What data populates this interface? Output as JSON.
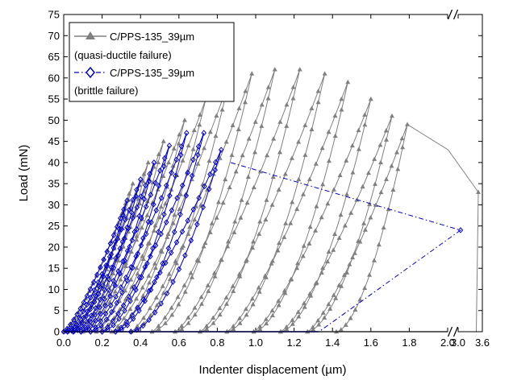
{
  "chart_data": {
    "type": "line",
    "xlabel": "Indenter displacement (µm)",
    "ylabel": "Load (mN)",
    "ylim": [
      0,
      75
    ],
    "x_ticks": [
      0.0,
      0.2,
      0.4,
      0.6,
      0.8,
      1.0,
      1.2,
      1.4,
      1.6,
      1.8,
      2.0,
      3.0,
      3.6
    ],
    "x_tick_labels": [
      "0.0",
      "0.2",
      "0.4",
      "0.6",
      "0.8",
      "1.0",
      "1.2",
      "1.4",
      "1.6",
      "1.8",
      "2.0",
      "3.0",
      "3.6"
    ],
    "y_ticks": [
      0,
      5,
      10,
      15,
      20,
      25,
      30,
      35,
      40,
      45,
      50,
      55,
      60,
      65,
      70,
      75
    ],
    "y_tick_labels": [
      "0",
      "5",
      "10",
      "15",
      "20",
      "25",
      "30",
      "35",
      "40",
      "45",
      "50",
      "55",
      "60",
      "65",
      "70",
      "75"
    ],
    "axis_break": {
      "from": 2.0,
      "to": 3.0,
      "marks": "//"
    },
    "grid": false,
    "legend": {
      "placement": "top-left",
      "entries": [
        {
          "label": "C/PPS-135_39µm",
          "sublabel": "(quasi-ductile failure)",
          "marker": "triangle",
          "color": "#808080"
        },
        {
          "label": "C/PPS-135_39µm",
          "sublabel": "(brittle failure)",
          "marker": "diamond",
          "color": "#0000cc"
        }
      ]
    },
    "series": [
      {
        "name": "C/PPS-135_39µm (quasi-ductile failure)",
        "color": "#808080",
        "marker": "triangle",
        "cycles": [
          {
            "start": 0.0,
            "peak_x": 0.36,
            "peak_y": 35,
            "end": 0.02
          },
          {
            "start": 0.02,
            "peak_x": 0.44,
            "peak_y": 40,
            "end": 0.05
          },
          {
            "start": 0.05,
            "peak_x": 0.52,
            "peak_y": 45,
            "end": 0.1
          },
          {
            "start": 0.1,
            "peak_x": 0.63,
            "peak_y": 50,
            "end": 0.17
          },
          {
            "start": 0.17,
            "peak_x": 0.74,
            "peak_y": 55,
            "end": 0.25
          },
          {
            "start": 0.25,
            "peak_x": 0.86,
            "peak_y": 59,
            "end": 0.35
          },
          {
            "start": 0.35,
            "peak_x": 0.98,
            "peak_y": 61,
            "end": 0.46
          },
          {
            "start": 0.46,
            "peak_x": 1.1,
            "peak_y": 62,
            "end": 0.58
          },
          {
            "start": 0.58,
            "peak_x": 1.23,
            "peak_y": 62,
            "end": 0.71
          },
          {
            "start": 0.71,
            "peak_x": 1.36,
            "peak_y": 61,
            "end": 0.85
          },
          {
            "start": 0.85,
            "peak_x": 1.48,
            "peak_y": 59,
            "end": 0.99
          },
          {
            "start": 0.99,
            "peak_x": 1.6,
            "peak_y": 55,
            "end": 1.13
          },
          {
            "start": 1.13,
            "peak_x": 1.71,
            "peak_y": 51,
            "end": 1.27
          },
          {
            "start": 1.27,
            "peak_x": 1.79,
            "peak_y": 49,
            "end": 1.42
          }
        ],
        "failure_path": [
          {
            "x": 1.79,
            "y": 49
          },
          {
            "x": 2.05,
            "y": 43
          },
          {
            "x": 3.5,
            "y": 33
          },
          {
            "x": 3.45,
            "y": 0
          }
        ],
        "baseline_end_x": 2.0
      },
      {
        "name": "C/PPS-135_39µm (brittle failure)",
        "color": "#0000cc",
        "marker": "diamond",
        "cycles": [
          {
            "start": 0.0,
            "peak_x": 0.33,
            "peak_y": 31,
            "end": 0.02
          },
          {
            "start": 0.02,
            "peak_x": 0.4,
            "peak_y": 36,
            "end": 0.05
          },
          {
            "start": 0.05,
            "peak_x": 0.47,
            "peak_y": 40,
            "end": 0.09
          },
          {
            "start": 0.09,
            "peak_x": 0.55,
            "peak_y": 44,
            "end": 0.14
          },
          {
            "start": 0.14,
            "peak_x": 0.64,
            "peak_y": 47,
            "end": 0.2
          },
          {
            "start": 0.2,
            "peak_x": 0.73,
            "peak_y": 47,
            "end": 0.27
          },
          {
            "start": 0.27,
            "peak_x": 0.82,
            "peak_y": 43,
            "end": 0.35
          }
        ],
        "failure_path": [
          {
            "x": 0.87,
            "y": 40
          },
          {
            "x": 3.06,
            "y": 24
          },
          {
            "x": 1.33,
            "y": 0
          }
        ],
        "baseline_end_x": 1.33
      }
    ]
  }
}
